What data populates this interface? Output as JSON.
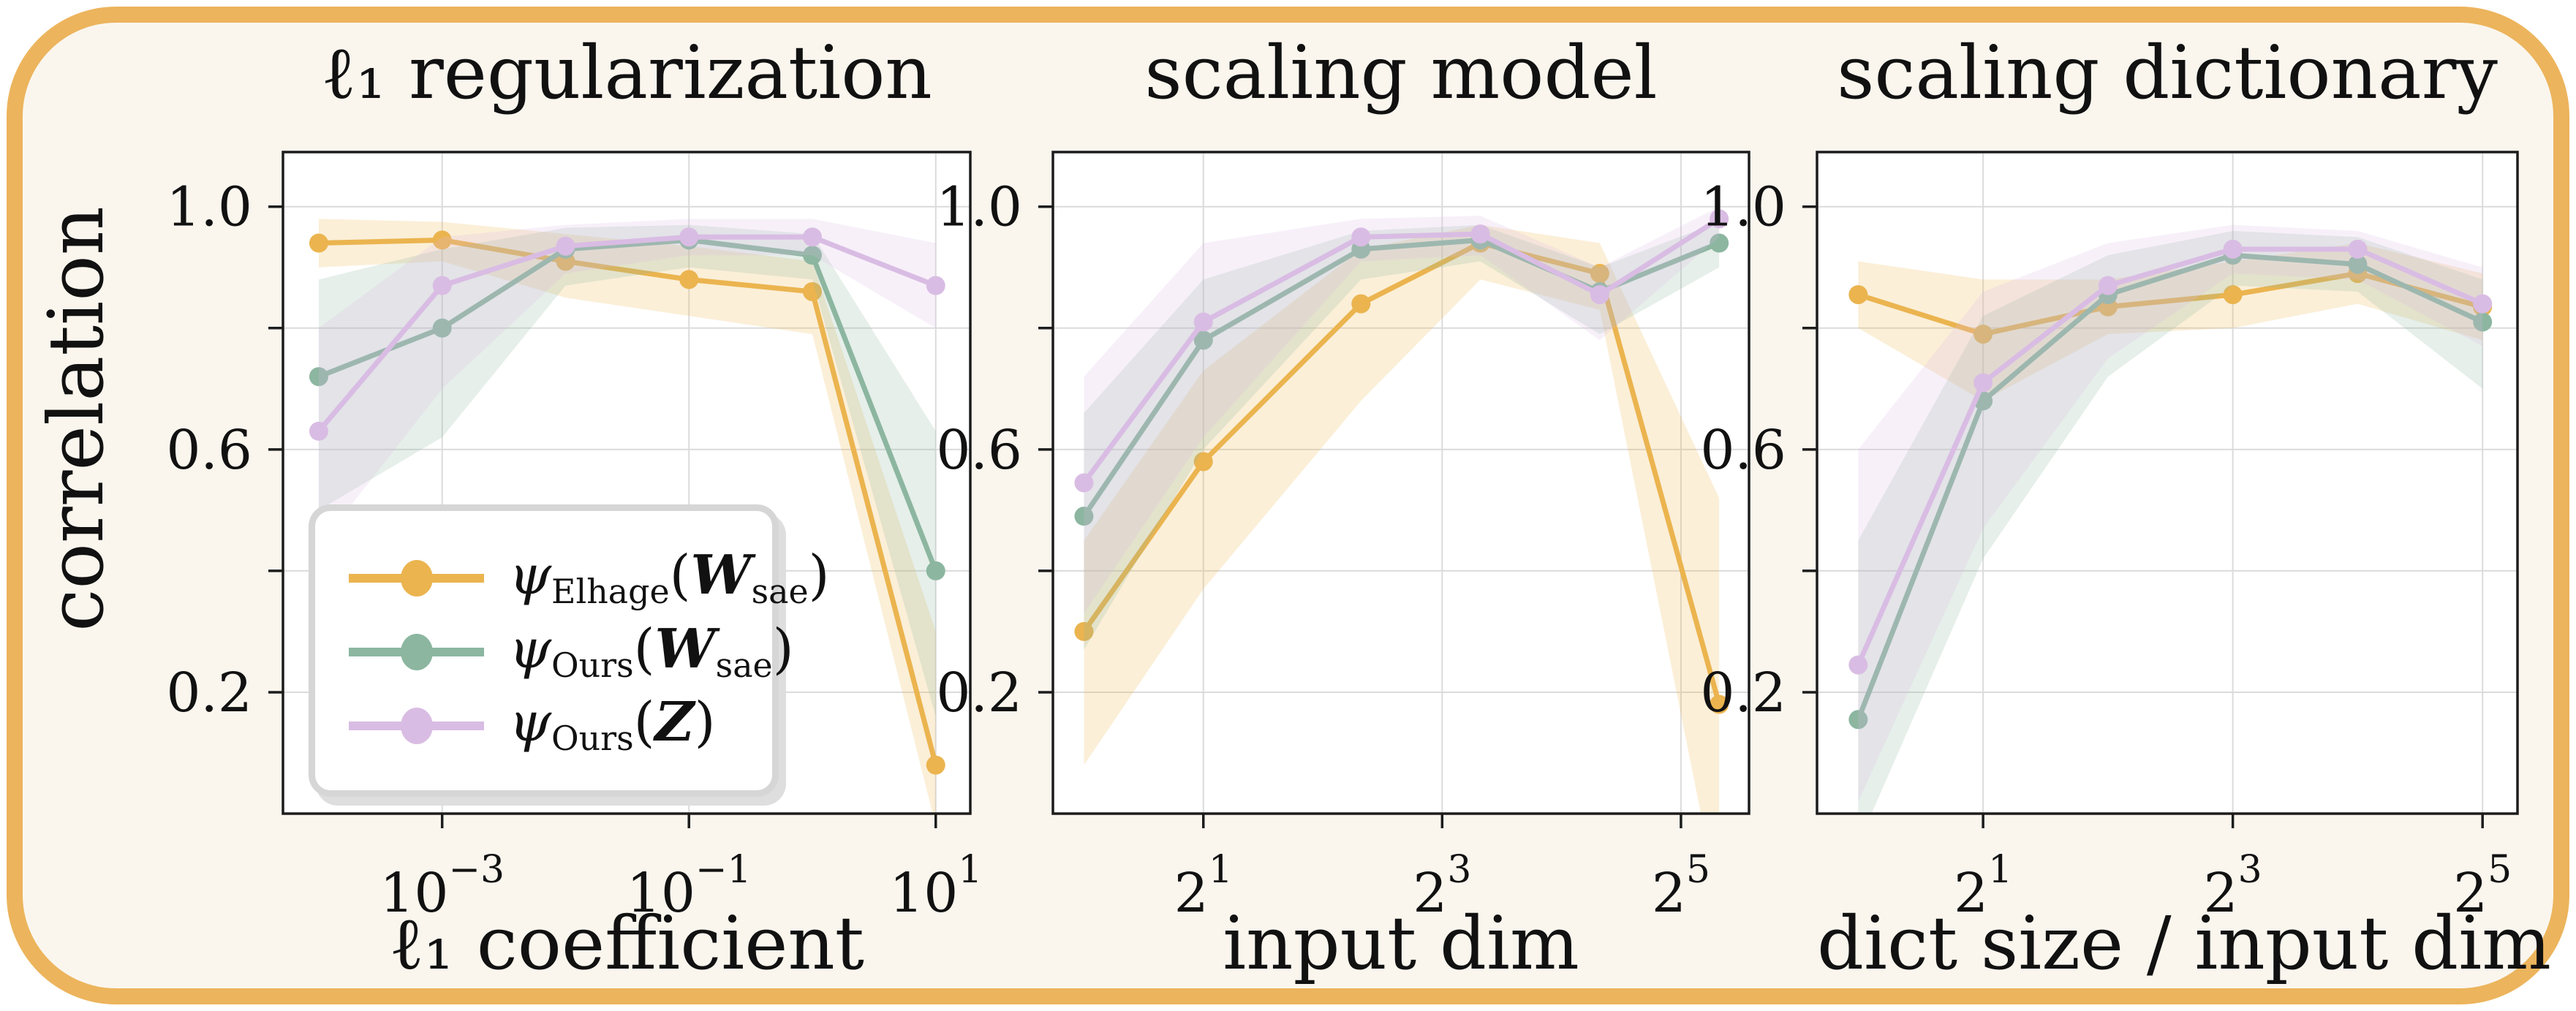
{
  "figure": {
    "ylabel": "correlation",
    "background_color": "#FAF6EE",
    "frame_border_color": "#ECB45C",
    "plot_background": "#ffffff",
    "gridline_color": "#DBDBDB",
    "spine_color": "#1C1C1C"
  },
  "legend": {
    "entries": [
      {
        "method": "ψ",
        "method_sub": "Elhage",
        "arg_open": "(",
        "arg": "W",
        "arg_sub": "sae",
        "arg_close": ")",
        "color": "#EBB44F"
      },
      {
        "method": "ψ",
        "method_sub": "Ours",
        "arg_open": "(",
        "arg": "W",
        "arg_sub": "sae",
        "arg_close": ")",
        "color": "#8CB6A0"
      },
      {
        "method": "ψ",
        "method_sub": "Ours",
        "arg_open": "(",
        "arg": "Z",
        "arg_sub": "",
        "arg_close": ")",
        "color": "#D9BCE3"
      }
    ]
  },
  "chart_data": [
    {
      "type": "line",
      "title": "ℓ₁ regularization",
      "xlabel": "ℓ₁ coefficient",
      "ylabel": "correlation",
      "x_scale": "log10",
      "x": [
        0.0001,
        0.001,
        0.01,
        0.1,
        1,
        10
      ],
      "x_log": [
        -4,
        -3,
        -2,
        -1,
        0,
        1
      ],
      "xlim_log": [
        -4.29,
        1.28
      ],
      "ylim": [
        0.0,
        1.09
      ],
      "y_gridlines": [
        0.2,
        0.4,
        0.6,
        0.8,
        1.0
      ],
      "y_tick_labels": [
        {
          "label": "1.0",
          "value": 1.0
        },
        {
          "label": "0.6",
          "value": 0.6
        },
        {
          "label": "0.2",
          "value": 0.2
        }
      ],
      "x_ticks": [
        {
          "base": "10",
          "sup": "−3",
          "log": -3
        },
        {
          "base": "10",
          "sup": "−1",
          "log": -1
        },
        {
          "base": "10",
          "sup": "1",
          "log": 1
        }
      ],
      "grid": true,
      "series": [
        {
          "name": "psi-elhage-wsae",
          "color": "#EBB44F",
          "values": [
            0.94,
            0.945,
            0.91,
            0.88,
            0.86,
            0.08
          ],
          "band_low": [
            0.9,
            0.91,
            0.85,
            0.82,
            0.79,
            -0.02
          ],
          "band_high": [
            0.98,
            0.975,
            0.955,
            0.935,
            0.91,
            0.3
          ]
        },
        {
          "name": "psi-ours-wsae",
          "color": "#8CB6A0",
          "values": [
            0.72,
            0.8,
            0.93,
            0.945,
            0.92,
            0.4
          ],
          "band_low": [
            0.5,
            0.62,
            0.87,
            0.9,
            0.88,
            0.16
          ],
          "band_high": [
            0.88,
            0.93,
            0.965,
            0.97,
            0.955,
            0.63
          ]
        },
        {
          "name": "psi-ours-z",
          "color": "#D9BCE3",
          "values": [
            0.63,
            0.87,
            0.935,
            0.95,
            0.95,
            0.87
          ],
          "band_low": [
            0.44,
            0.7,
            0.89,
            0.92,
            0.92,
            0.8
          ],
          "band_high": [
            0.8,
            0.95,
            0.97,
            0.98,
            0.98,
            0.94
          ]
        }
      ]
    },
    {
      "type": "line",
      "title": "scaling model",
      "xlabel": "input dim",
      "ylabel": "correlation",
      "x_scale": "log2",
      "x": [
        1,
        2,
        5,
        10,
        20,
        40
      ],
      "x_log": [
        0,
        1,
        2.32,
        3.32,
        4.32,
        5.32
      ],
      "xlim_log": [
        -0.26,
        5.57
      ],
      "ylim": [
        0.0,
        1.09
      ],
      "y_gridlines": [
        0.2,
        0.4,
        0.6,
        0.8,
        1.0
      ],
      "y_tick_labels": [
        {
          "label": "1.0",
          "value": 1.0
        },
        {
          "label": "0.6",
          "value": 0.6
        },
        {
          "label": "0.2",
          "value": 0.2
        }
      ],
      "x_ticks": [
        {
          "base": "2",
          "sup": "1",
          "log": 1
        },
        {
          "base": "2",
          "sup": "3",
          "log": 3
        },
        {
          "base": "2",
          "sup": "5",
          "log": 5
        }
      ],
      "grid": true,
      "series": [
        {
          "name": "psi-elhage-wsae",
          "color": "#EBB44F",
          "values": [
            0.3,
            0.58,
            0.84,
            0.94,
            0.89,
            0.18
          ],
          "band_low": [
            0.08,
            0.37,
            0.68,
            0.88,
            0.83,
            -0.15
          ],
          "band_high": [
            0.45,
            0.73,
            0.93,
            0.97,
            0.94,
            0.52
          ]
        },
        {
          "name": "psi-ours-wsae",
          "color": "#8CB6A0",
          "values": [
            0.49,
            0.78,
            0.93,
            0.945,
            0.86,
            0.94
          ],
          "band_low": [
            0.27,
            0.6,
            0.88,
            0.91,
            0.79,
            0.9
          ],
          "band_high": [
            0.66,
            0.88,
            0.96,
            0.97,
            0.9,
            0.975
          ]
        },
        {
          "name": "psi-ours-z",
          "color": "#D9BCE3",
          "values": [
            0.545,
            0.81,
            0.95,
            0.955,
            0.855,
            0.98
          ],
          "band_low": [
            0.33,
            0.62,
            0.91,
            0.92,
            0.78,
            0.95
          ],
          "band_high": [
            0.72,
            0.94,
            0.98,
            0.985,
            0.9,
            1.0
          ]
        }
      ]
    },
    {
      "type": "line",
      "title": "scaling dictionary",
      "xlabel": "dict size / input dim",
      "ylabel": "correlation",
      "x_scale": "log2",
      "x": [
        1,
        2,
        4,
        8,
        16,
        32
      ],
      "x_log": [
        0,
        1,
        2,
        3,
        4,
        5
      ],
      "xlim_log": [
        -0.33,
        5.28
      ],
      "ylim": [
        0.0,
        1.09
      ],
      "y_gridlines": [
        0.2,
        0.4,
        0.6,
        0.8,
        1.0
      ],
      "y_tick_labels": [
        {
          "label": "1.0",
          "value": 1.0
        },
        {
          "label": "0.6",
          "value": 0.6
        },
        {
          "label": "0.2",
          "value": 0.2
        }
      ],
      "x_ticks": [
        {
          "base": "2",
          "sup": "1",
          "log": 1
        },
        {
          "base": "2",
          "sup": "3",
          "log": 3
        },
        {
          "base": "2",
          "sup": "5",
          "log": 5
        }
      ],
      "grid": true,
      "series": [
        {
          "name": "psi-elhage-wsae",
          "color": "#EBB44F",
          "values": [
            0.855,
            0.79,
            0.835,
            0.855,
            0.89,
            0.835
          ],
          "band_low": [
            0.8,
            0.68,
            0.79,
            0.8,
            0.84,
            0.78
          ],
          "band_high": [
            0.91,
            0.88,
            0.88,
            0.91,
            0.94,
            0.89
          ]
        },
        {
          "name": "psi-ours-wsae",
          "color": "#8CB6A0",
          "values": [
            0.155,
            0.68,
            0.855,
            0.92,
            0.905,
            0.81
          ],
          "band_low": [
            -0.05,
            0.42,
            0.72,
            0.87,
            0.86,
            0.7
          ],
          "band_high": [
            0.45,
            0.82,
            0.92,
            0.96,
            0.95,
            0.88
          ]
        },
        {
          "name": "psi-ours-z",
          "color": "#D9BCE3",
          "values": [
            0.245,
            0.71,
            0.87,
            0.93,
            0.93,
            0.84
          ],
          "band_low": [
            0.02,
            0.47,
            0.75,
            0.89,
            0.88,
            0.77
          ],
          "band_high": [
            0.6,
            0.86,
            0.94,
            0.97,
            0.96,
            0.9
          ]
        }
      ]
    }
  ]
}
